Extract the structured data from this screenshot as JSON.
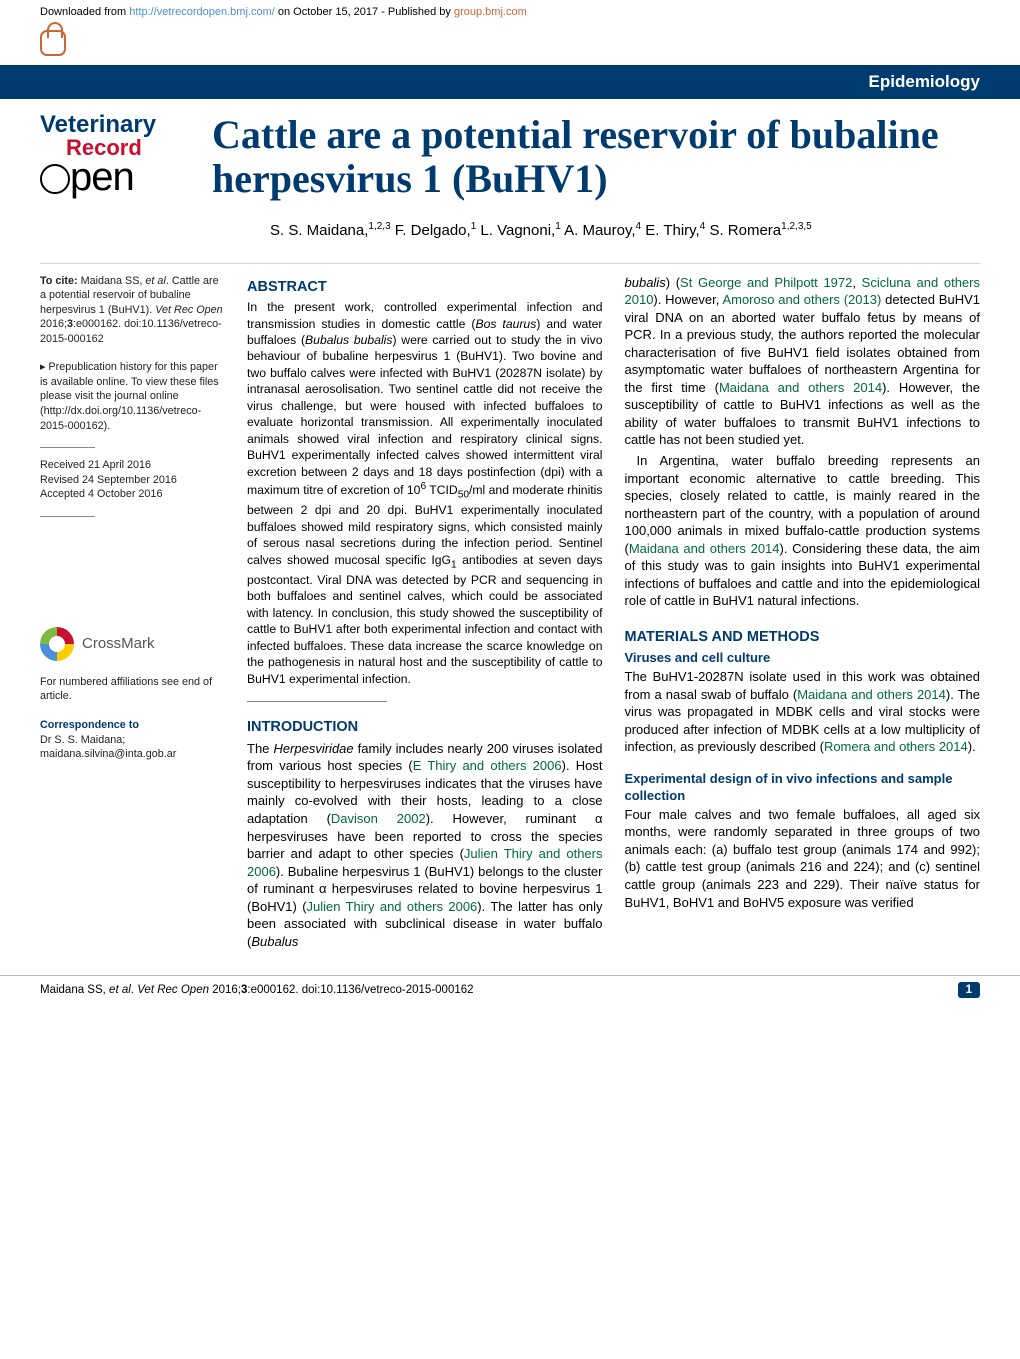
{
  "header": {
    "downloaded_prefix": "Downloaded from ",
    "downloaded_url": "http://vetrecordopen.bmj.com/",
    "downloaded_mid": " on October 15, 2017 - Published by ",
    "downloaded_group": "group.bmj.com",
    "category": "Epidemiology"
  },
  "logo": {
    "line1": "Veterinary",
    "line2": "Record",
    "line3": "pen"
  },
  "title": "Cattle are a potential reservoir of bubaline herpesvirus 1 (BuHV1)",
  "authors": "S. S. Maidana,<sup>1,2,3</sup> F. Delgado,<sup>1</sup> L. Vagnoni,<sup>1</sup> A. Mauroy,<sup>4</sup> E. Thiry,<sup>4</sup> S. Romera<sup>1,2,3,5</sup>",
  "sidebar": {
    "cite": "<strong>To cite:</strong> Maidana SS, <span class=\"em\">et al</span>. Cattle are a potential reservoir of bubaline herpesvirus 1 (BuHV1). <span class=\"em\">Vet Rec Open</span> 2016;<strong>3</strong>:e000162. doi:10.1136/vetreco-2015-000162",
    "prepub": "▸ Prepublication history for this paper is available online. To view these files please visit the journal online (http://dx.doi.org/10.1136/vetreco-2015-000162).",
    "dates": "Received 21 April 2016\nRevised 24 September 2016\nAccepted 4 October 2016",
    "crossmark": "CrossMark",
    "affil": "For numbered affiliations see end of article.",
    "corr_head": "Correspondence to",
    "corr": "Dr S. S. Maidana; maidana.silvina@inta.gob.ar"
  },
  "abstract": {
    "heading": "ABSTRACT",
    "text": "In the present work, controlled experimental infection and transmission studies in domestic cattle (<span class=\"em\">Bos taurus</span>) and water buffaloes (<span class=\"em\">Bubalus bubalis</span>) were carried out to study the in vivo behaviour of bubaline herpesvirus 1 (BuHV1). Two bovine and two buffalo calves were infected with BuHV1 (20287N isolate) by intranasal aerosolisation. Two sentinel cattle did not receive the virus challenge, but were housed with infected buffaloes to evaluate horizontal transmission. All experimentally inoculated animals showed viral infection and respiratory clinical signs. BuHV1 experimentally infected calves showed intermittent viral excretion between 2 days and 18 days postinfection (dpi) with a maximum titre of excretion of 10<sup>6</sup> TCID<sub>50</sub>/ml and moderate rhinitis between 2 dpi and 20 dpi. BuHV1 experimentally inoculated buffaloes showed mild respiratory signs, which consisted mainly of serous nasal secretions during the infection period. Sentinel calves showed mucosal specific IgG<sub>1</sub> antibodies at seven days postcontact. Viral DNA was detected by PCR and sequencing in both buffaloes and sentinel calves, which could be associated with latency. In conclusion, this study showed the susceptibility of cattle to BuHV1 after both experimental infection and contact with infected buffaloes. These data increase the scarce knowledge on the pathogenesis in natural host and the susceptibility of cattle to BuHV1 experimental infection."
  },
  "intro": {
    "heading": "INTRODUCTION",
    "p1": "The <span class=\"em\">Herpesviridae</span> family includes nearly 200 viruses isolated from various host species (<span class=\"link\">E Thiry and others 2006</span>). Host susceptibility to herpesviruses indicates that the viruses have mainly co-evolved with their hosts, leading to a close adaptation (<span class=\"link\">Davison 2002</span>). However, ruminant α herpesviruses have been reported to cross the species barrier and adapt to other species (<span class=\"link\">Julien Thiry and others 2006</span>). Bubaline herpesvirus 1 (BuHV1) belongs to the cluster of ruminant α herpesviruses related to bovine herpesvirus 1 (BoHV1) (<span class=\"link\">Julien Thiry and others 2006</span>). The latter has only been associated with subclinical disease in water buffalo (<span class=\"em\">Bubalus</span>",
    "p2": "<span class=\"em\">bubalis</span>) (<span class=\"link\">St George and Philpott 1972</span>, <span class=\"link\">Scicluna and others 2010</span>). However, <span class=\"link\">Amoroso and others (2013)</span> detected BuHV1 viral DNA on an aborted water buffalo fetus by means of PCR. In a previous study, the authors reported the molecular characterisation of five BuHV1 field isolates obtained from asymptomatic water buffaloes of northeastern Argentina for the first time (<span class=\"link\">Maidana and others 2014</span>). However, the susceptibility of cattle to BuHV1 infections as well as the ability of water buffaloes to transmit BuHV1 infections to cattle has not been studied yet.",
    "p3": "In Argentina, water buffalo breeding represents an important economic alternative to cattle breeding. This species, closely related to cattle, is mainly reared in the northeastern part of the country, with a population of around 100,000 animals in mixed buffalo-cattle production systems (<span class=\"link\">Maidana and others 2014</span>). Considering these data, the aim of this study was to gain insights into BuHV1 experimental infections of buffaloes and cattle and into the epidemiological role of cattle in BuHV1 natural infections."
  },
  "methods": {
    "h1": "MATERIALS AND METHODS",
    "h2a": "Viruses and cell culture",
    "p_a": "The BuHV1-20287N isolate used in this work was obtained from a nasal swab of buffalo (<span class=\"link\">Maidana and others 2014</span>). The virus was propagated in MDBK cells and viral stocks were produced after infection of MDBK cells at a low multiplicity of infection, as previously described (<span class=\"link\">Romera and others 2014</span>).",
    "h2b": "Experimental design of in vivo infections and sample collection",
    "p_b": "Four male calves and two female buffaloes, all aged six months, were randomly separated in three groups of two animals each: (a) buffalo test group (animals 174 and 992); (b) cattle test group (animals 216 and 224); and (c) sentinel cattle group (animals 223 and 229). Their naïve status for BuHV1, BoHV1 and BoHV5 exposure was verified"
  },
  "footer": {
    "cite": "Maidana SS, <span class=\"em\">et al</span>. <span class=\"em\">Vet Rec Open</span> 2016;<strong>3</strong>:e000162. doi:10.1136/vetreco-2015-000162",
    "page": "1"
  }
}
